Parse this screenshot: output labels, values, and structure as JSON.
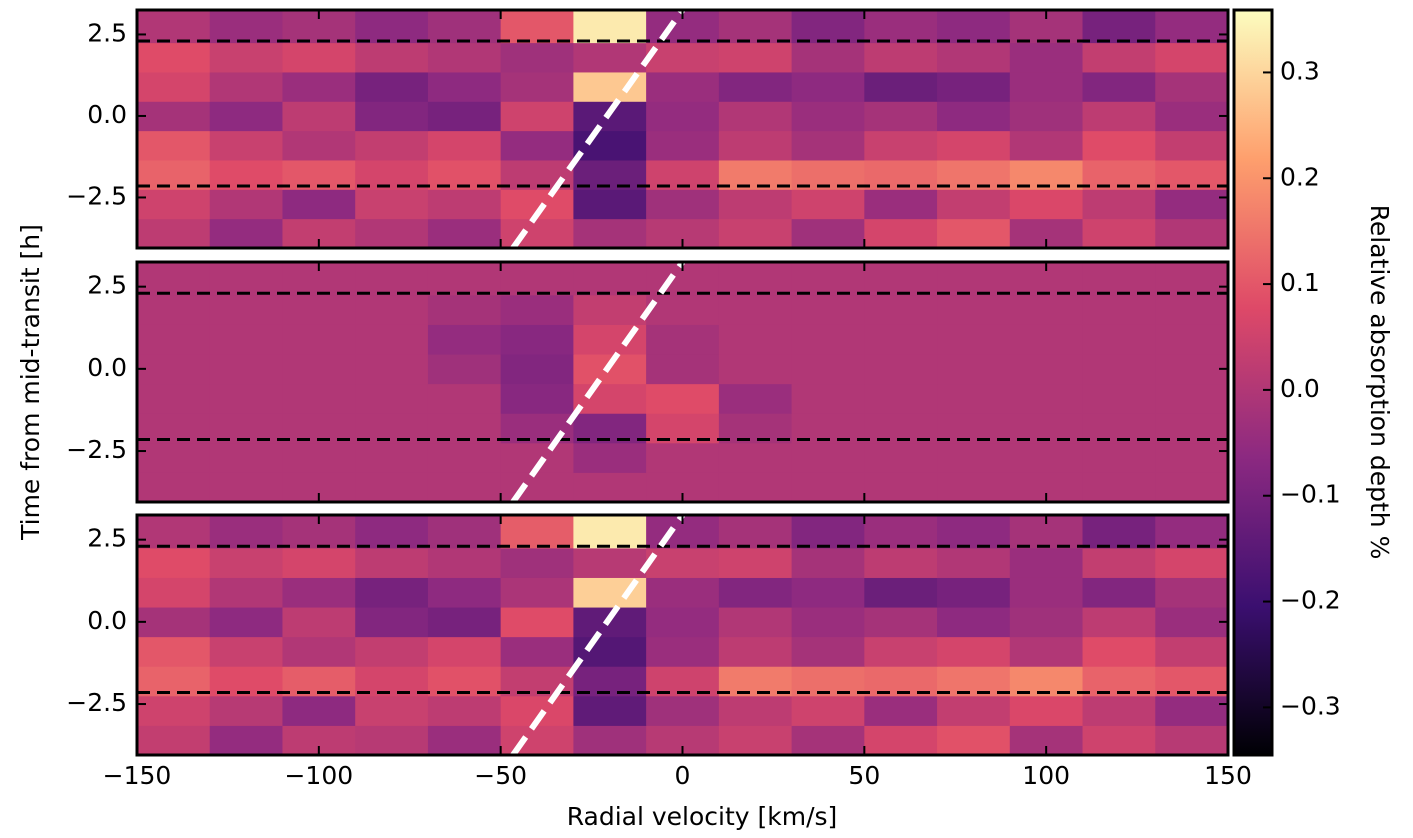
{
  "chart_data": {
    "type": "heatmap",
    "x_axis": {
      "label": "Radial velocity [km/s]",
      "xlim": [
        -150,
        150
      ],
      "xticks": [
        {
          "value": -150,
          "label": "−150"
        },
        {
          "value": -100,
          "label": "−100"
        },
        {
          "value": -50,
          "label": "−50"
        },
        0,
        50,
        100,
        150
      ]
    },
    "y_label": "Time from mid-transit [h]",
    "ylim": [
      -4.05,
      3.25
    ],
    "yticks": [
      2.5,
      {
        "value": 0,
        "label": "0.0"
      },
      {
        "value": -2.5,
        "label": "−2.5"
      }
    ],
    "x_edges": [
      -150,
      -130,
      -110,
      -90,
      -70,
      -50,
      -30,
      -10,
      10,
      30,
      50,
      70,
      90,
      110,
      130,
      150
    ],
    "y_edges": [
      -4.05,
      -3.15,
      -2.25,
      -1.35,
      -0.45,
      0.45,
      1.35,
      2.25,
      3.25
    ],
    "transit_lines": [
      2.3,
      -2.15
    ],
    "planet_track": {
      "x": [
        -46.6,
        0
      ],
      "y": [
        -4.05,
        3.25
      ]
    },
    "colorbar": {
      "label": "Relative absorption depth %",
      "vlim": [
        -0.345,
        0.359
      ],
      "ticks": [
        0.3,
        0.2,
        0.1,
        {
          "value": 0,
          "label": "0.0"
        },
        {
          "value": -0.1,
          "label": "−0.1"
        },
        {
          "value": -0.2,
          "label": "−0.2"
        },
        {
          "value": -0.3,
          "label": "−0.3"
        }
      ],
      "colormap": [
        "#000004",
        "#3b0f70",
        "#8c2981",
        "#de4968",
        "#fe9f6d",
        "#fcfdbf"
      ]
    },
    "panels": [
      {
        "z": [
          [
            0.02,
            -0.05,
            0.03,
            0.0,
            -0.04,
            0.05,
            -0.02,
            0.01,
            0.04,
            -0.03,
            0.06,
            0.1,
            -0.02,
            0.05,
            0.0
          ],
          [
            0.05,
            0.0,
            -0.06,
            0.04,
            0.02,
            0.08,
            -0.15,
            -0.03,
            0.02,
            0.05,
            -0.04,
            0.03,
            0.07,
            0.02,
            -0.05
          ],
          [
            0.12,
            0.08,
            0.1,
            0.06,
            0.09,
            0.02,
            -0.12,
            0.05,
            0.16,
            0.14,
            0.13,
            0.15,
            0.18,
            0.12,
            0.1
          ],
          [
            0.1,
            0.04,
            0.0,
            0.03,
            0.06,
            -0.05,
            -0.18,
            -0.04,
            0.02,
            -0.02,
            0.04,
            0.06,
            0.0,
            0.08,
            0.03
          ],
          [
            -0.02,
            -0.06,
            0.02,
            -0.08,
            -0.1,
            0.05,
            -0.15,
            -0.05,
            0.0,
            -0.04,
            -0.02,
            -0.06,
            -0.03,
            0.02,
            -0.04
          ],
          [
            0.06,
            0.0,
            -0.04,
            -0.1,
            -0.06,
            -0.02,
            0.28,
            -0.04,
            -0.08,
            -0.06,
            -0.12,
            -0.1,
            -0.04,
            -0.08,
            -0.02
          ],
          [
            0.08,
            0.04,
            0.06,
            0.02,
            0.0,
            -0.03,
            0.0,
            0.04,
            0.05,
            -0.02,
            0.02,
            0.0,
            -0.04,
            0.03,
            0.06
          ],
          [
            0.0,
            -0.04,
            -0.02,
            -0.06,
            -0.03,
            0.1,
            0.33,
            -0.05,
            -0.02,
            -0.08,
            -0.04,
            -0.06,
            -0.02,
            -0.1,
            -0.05
          ]
        ]
      },
      {
        "z": [
          [
            0,
            0,
            0,
            0,
            0,
            0,
            0,
            0,
            0,
            0,
            0,
            0,
            0,
            0,
            0
          ],
          [
            0,
            0,
            0,
            0,
            0,
            0,
            -0.04,
            0,
            0,
            0,
            0,
            0,
            0,
            0,
            0
          ],
          [
            0,
            0,
            0,
            0,
            0,
            -0.04,
            -0.08,
            0.06,
            -0.02,
            0,
            0,
            0,
            0,
            0,
            0
          ],
          [
            0,
            0,
            0,
            0,
            0,
            -0.07,
            0.06,
            0.08,
            -0.04,
            0,
            0,
            0,
            0,
            0,
            0
          ],
          [
            0,
            0,
            0,
            0,
            -0.03,
            -0.08,
            0.09,
            -0.02,
            0,
            0,
            0,
            0,
            0,
            0,
            0
          ],
          [
            0,
            0,
            0,
            0,
            -0.05,
            -0.07,
            0.06,
            -0.02,
            0,
            0,
            0,
            0,
            0,
            0,
            0
          ],
          [
            0,
            0,
            0,
            0,
            -0.02,
            -0.04,
            0.03,
            0,
            0,
            0,
            0,
            0,
            0,
            0,
            0
          ],
          [
            0,
            0,
            0,
            0,
            0,
            0,
            0,
            0,
            0,
            0,
            0,
            0,
            0,
            0,
            0
          ]
        ]
      },
      {
        "z": [
          [
            0.03,
            -0.05,
            0.02,
            0.01,
            -0.04,
            0.05,
            -0.03,
            0.01,
            0.04,
            -0.02,
            0.06,
            0.09,
            -0.02,
            0.05,
            0.01
          ],
          [
            0.05,
            0.01,
            -0.06,
            0.04,
            0.02,
            0.07,
            -0.14,
            -0.03,
            0.02,
            0.05,
            -0.04,
            0.03,
            0.07,
            0.02,
            -0.05
          ],
          [
            0.12,
            0.08,
            0.11,
            0.06,
            0.09,
            0.03,
            -0.1,
            0.05,
            0.16,
            0.14,
            0.13,
            0.15,
            0.18,
            0.12,
            0.1
          ],
          [
            0.1,
            0.04,
            0.0,
            0.03,
            0.06,
            -0.04,
            -0.16,
            -0.04,
            0.02,
            -0.02,
            0.04,
            0.06,
            0.0,
            0.08,
            0.03
          ],
          [
            -0.02,
            -0.06,
            0.02,
            -0.08,
            -0.1,
            0.08,
            -0.14,
            -0.05,
            0.0,
            -0.04,
            -0.02,
            -0.06,
            -0.03,
            0.02,
            -0.04
          ],
          [
            0.06,
            0.0,
            -0.04,
            -0.1,
            -0.06,
            -0.01,
            0.29,
            -0.04,
            -0.08,
            -0.06,
            -0.12,
            -0.1,
            -0.04,
            -0.08,
            -0.02
          ],
          [
            0.08,
            0.04,
            0.06,
            0.02,
            0.0,
            -0.03,
            0.01,
            0.04,
            0.05,
            -0.02,
            0.02,
            0.0,
            -0.04,
            0.03,
            0.06
          ],
          [
            0.0,
            -0.04,
            -0.02,
            -0.06,
            -0.03,
            0.11,
            0.33,
            -0.05,
            -0.02,
            -0.08,
            -0.04,
            -0.06,
            -0.02,
            -0.1,
            -0.05
          ]
        ]
      }
    ]
  }
}
